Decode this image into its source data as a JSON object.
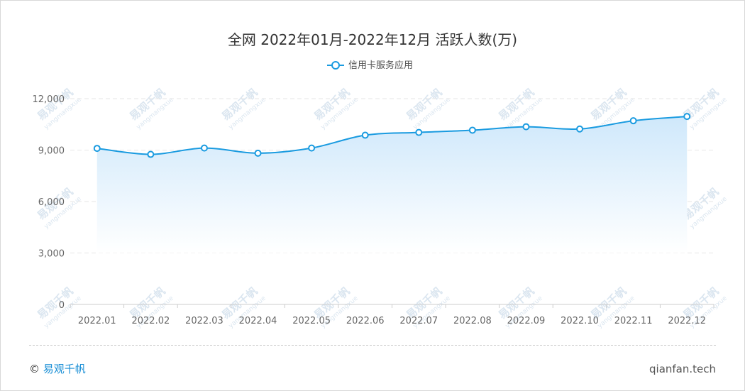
{
  "chart_data": {
    "type": "area",
    "title": "全网 2022年01月-2022年12月 活跃人数(万)",
    "categories": [
      "2022.01",
      "2022.02",
      "2022.03",
      "2022.04",
      "2022.05",
      "2022.06",
      "2022.07",
      "2022.08",
      "2022.09",
      "2022.10",
      "2022.11",
      "2022.12"
    ],
    "series": [
      {
        "name": "信用卡服务应用",
        "values": [
          9100,
          8750,
          9120,
          8820,
          9120,
          9870,
          10030,
          10160,
          10360,
          10230,
          10710,
          10960
        ]
      }
    ],
    "yticks": [
      "0",
      "3,000",
      "6,000",
      "9,000",
      "12,000"
    ],
    "ylim": [
      0,
      12000
    ],
    "grid": true,
    "legend_position": "top-center",
    "colors": {
      "line": "#1a9be0",
      "area_top": "#cfe8fb",
      "area_bottom": "#ffffff"
    }
  },
  "watermark": {
    "text": "易观千帆",
    "sub": "yangmangxue"
  },
  "footer": {
    "copyright_symbol": "©",
    "brand": "易观千帆",
    "site": "qianfan.tech"
  }
}
